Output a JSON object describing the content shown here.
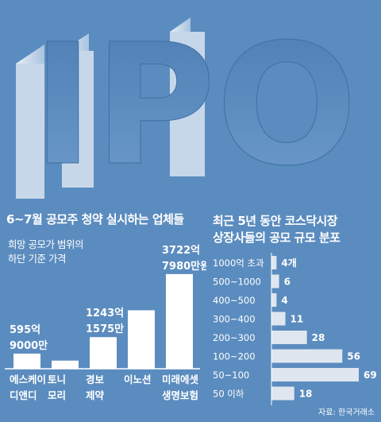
{
  "hero": {
    "text": "IPO"
  },
  "left_chart": {
    "title": "6~7월 공모주 청약 실시하는 업체들",
    "subtitle_lines": [
      "희망 공모가 범위의",
      "하단 기준 가격"
    ]
  },
  "right_chart": {
    "title_lines": [
      "최근 5년 동안 코스닥시장",
      "상장사들의 공모 규모 분포"
    ]
  },
  "source": "자료: 한국거래소",
  "colors": {
    "background": "#5b8cbf",
    "bar": "#ffffff",
    "hbar": "#dfe6f0",
    "text": "#ffffff"
  },
  "chart_data": [
    {
      "type": "bar",
      "title": "6~7월 공모주 청약 실시하는 업체들",
      "subtitle": "희망 공모가 범위의 하단 기준 가격",
      "categories": [
        [
          "에스케이",
          "디앤디"
        ],
        [
          "토니",
          "모리"
        ],
        [
          "경보",
          "제약"
        ],
        [
          "이노션"
        ],
        [
          "미래에셋",
          "생명보험"
        ]
      ],
      "values": [
        5959000,
        3200000,
        12431575,
        23000000,
        37227980
      ],
      "data_labels": [
        [
          "595억",
          "9000만"
        ],
        [],
        [
          "1243억",
          "1575만"
        ],
        [],
        [
          "3722억",
          "7980만원"
        ]
      ],
      "ylim": [
        0,
        40000000
      ]
    },
    {
      "type": "bar",
      "orientation": "horizontal",
      "title": "최근 5년 동안 코스닥시장 상장사들의 공모 규모 분포",
      "categories": [
        "1000억 초과",
        "500~1000",
        "400~500",
        "300~400",
        "200~300",
        "100~200",
        "50~100",
        "50 이하"
      ],
      "values": [
        4,
        6,
        4,
        11,
        28,
        56,
        69,
        18
      ],
      "value_labels": [
        "4개",
        "6",
        "4",
        "11",
        "28",
        "56",
        "69",
        "18"
      ],
      "xlim": [
        0,
        69
      ]
    }
  ]
}
